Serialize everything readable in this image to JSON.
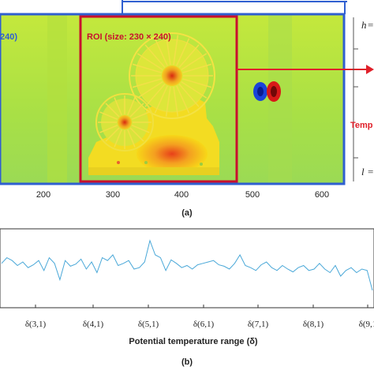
{
  "figure_a": {
    "left_label": "240)",
    "roi_label": "ROI (size: 230 × 240)",
    "x_ticks": [
      "200",
      "300",
      "400",
      "500",
      "600"
    ],
    "side_h": "h",
    "side_l": "l",
    "side_temp": "Temp",
    "caption": "(a)",
    "colors": {
      "field": "#b8e43a",
      "border": "#2f5fd0",
      "roi": "#c8102e",
      "arrow": "#e0202a"
    }
  },
  "figure_b": {
    "x_ticks": [
      "δ(3,1)",
      "δ(4,1)",
      "δ(5,1)",
      "δ(6,1)",
      "δ(7,1)",
      "δ(8,1)",
      "δ(9,1"
    ],
    "xlabel": "Potential temperature range (δ)",
    "caption": "(b)",
    "color": "#4aa8d8"
  },
  "chart_data": {
    "type": "line",
    "title": "",
    "xlabel": "Potential temperature range (δ)",
    "ylabel": "",
    "categories": [
      "δ(3,1)",
      "δ(4,1)",
      "δ(5,1)",
      "δ(6,1)",
      "δ(7,1)",
      "δ(8,1)",
      "δ(9,1"
    ],
    "x": [
      0,
      1,
      2,
      3,
      4,
      5,
      6,
      7,
      8,
      9,
      10,
      11,
      12,
      13,
      14,
      15,
      16,
      17,
      18,
      19,
      20,
      21,
      22,
      23,
      24,
      25,
      26,
      27,
      28,
      29,
      30,
      31,
      32,
      33,
      34,
      35,
      36,
      37,
      38,
      39,
      40,
      41,
      42,
      43,
      44,
      45,
      46,
      47,
      48,
      49,
      50,
      51,
      52,
      53,
      54,
      55,
      56,
      57,
      58,
      59,
      60,
      61,
      62,
      63,
      64,
      65,
      66,
      67,
      68,
      69,
      70
    ],
    "values": [
      0.58,
      0.66,
      0.62,
      0.55,
      0.6,
      0.52,
      0.56,
      0.62,
      0.48,
      0.66,
      0.58,
      0.35,
      0.62,
      0.54,
      0.57,
      0.64,
      0.5,
      0.6,
      0.45,
      0.66,
      0.62,
      0.7,
      0.55,
      0.58,
      0.62,
      0.5,
      0.52,
      0.6,
      0.9,
      0.7,
      0.66,
      0.48,
      0.63,
      0.58,
      0.52,
      0.55,
      0.5,
      0.56,
      0.58,
      0.6,
      0.62,
      0.56,
      0.54,
      0.5,
      0.58,
      0.7,
      0.55,
      0.52,
      0.48,
      0.56,
      0.6,
      0.52,
      0.48,
      0.55,
      0.5,
      0.46,
      0.52,
      0.55,
      0.48,
      0.5,
      0.58,
      0.5,
      0.45,
      0.55,
      0.4,
      0.48,
      0.52,
      0.45,
      0.5,
      0.48,
      0.2
    ],
    "grid": false
  }
}
